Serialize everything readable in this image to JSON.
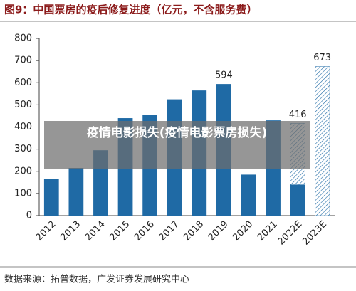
{
  "chart_data": {
    "type": "bar",
    "title": "图9：中国票房的疫后修复进度（亿元，不含服务费）",
    "source": "数据来源：拓普数据，广发证券发展研究中心",
    "overlay": "疫情电影损失(疫情电影票房损失)",
    "categories": [
      "2012",
      "2013",
      "2014",
      "2015",
      "2016",
      "2017",
      "2018",
      "2019",
      "2020",
      "2021",
      "2022E",
      "2023E"
    ],
    "series": [
      {
        "color": "#1f6aa5",
        "values": [
          165,
          215,
          295,
          440,
          455,
          525,
          565,
          594,
          185,
          430,
          140,
          null
        ]
      },
      {
        "color": "#1f6aa5",
        "hatched": true,
        "values": [
          null,
          null,
          null,
          null,
          null,
          null,
          null,
          null,
          null,
          null,
          416,
          673
        ]
      }
    ],
    "labeled": [
      [
        0,
        7
      ],
      [
        1,
        10
      ],
      [
        1,
        11
      ]
    ],
    "ylim": [
      0,
      800
    ],
    "yticks": [
      0,
      100,
      200,
      300,
      400,
      500,
      600,
      700,
      800
    ]
  }
}
